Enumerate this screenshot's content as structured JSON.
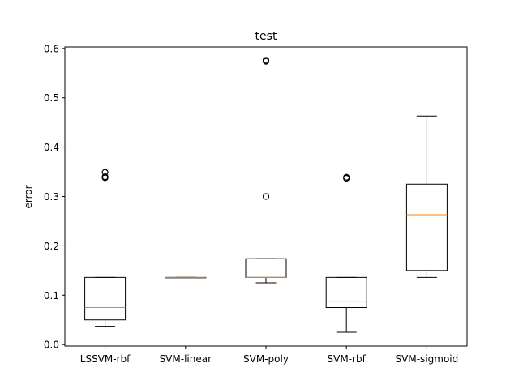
{
  "chart_data": {
    "type": "box",
    "title": "test",
    "xlabel": "",
    "ylabel": "error",
    "ylim": [
      -0.003,
      0.603
    ],
    "yticks": [
      0.0,
      0.1,
      0.2,
      0.3,
      0.4,
      0.5,
      0.6
    ],
    "ytick_labels": [
      "0.0",
      "0.1",
      "0.2",
      "0.3",
      "0.4",
      "0.5",
      "0.6"
    ],
    "grid": false,
    "categories": [
      "LSSVM-rbf",
      "SVM-linear",
      "SVM-poly",
      "SVM-rbf",
      "SVM-sigmoid"
    ],
    "boxes": [
      {
        "whisker_low": 0.037,
        "q1": 0.05,
        "median": 0.075,
        "q3": 0.136,
        "whisker_high": 0.136,
        "outliers": [
          0.338,
          0.34,
          0.349
        ]
      },
      {
        "whisker_low": 0.136,
        "q1": 0.136,
        "median": 0.136,
        "q3": 0.136,
        "whisker_high": 0.136,
        "outliers": []
      },
      {
        "whisker_low": 0.125,
        "q1": 0.136,
        "median": 0.136,
        "q3": 0.174,
        "whisker_high": 0.174,
        "outliers": [
          0.3,
          0.574,
          0.576
        ]
      },
      {
        "whisker_low": 0.025,
        "q1": 0.075,
        "median": 0.088,
        "q3": 0.136,
        "whisker_high": 0.136,
        "outliers": [
          0.337,
          0.339
        ]
      },
      {
        "whisker_low": 0.136,
        "q1": 0.15,
        "median": 0.263,
        "q3": 0.325,
        "whisker_high": 0.463,
        "outliers": []
      }
    ],
    "colors": {
      "box": "#000000",
      "median": "#ff7f0e",
      "axes": "#000000",
      "background": "#ffffff"
    }
  }
}
